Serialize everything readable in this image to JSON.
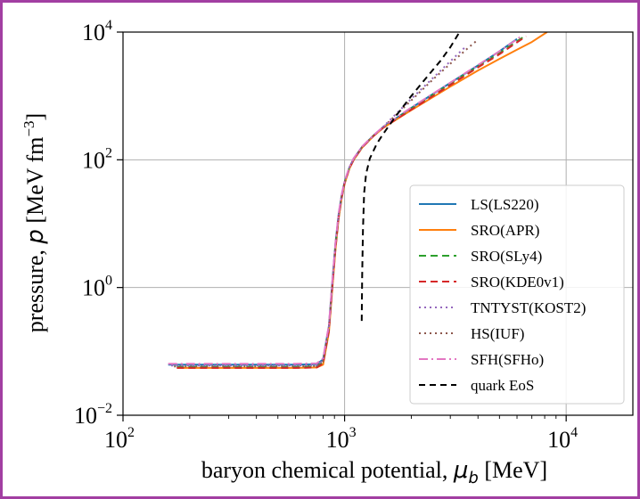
{
  "chart_data": {
    "type": "line",
    "xlabel_prefix": "baryon chemical potential, ",
    "xlabel_symbol": "μ",
    "xlabel_sub": "b",
    "xlabel_suffix": " [MeV]",
    "ylabel_prefix": "pressure, ",
    "ylabel_symbol": "p",
    "ylabel_unit": " [MeV fm",
    "ylabel_exp": "−3",
    "ylabel_close": "]",
    "xscale": "log",
    "yscale": "log",
    "xlim": [
      100,
      20000
    ],
    "ylim": [
      0.01,
      10000
    ],
    "grid": true,
    "legend_position": "lower-right",
    "x_ticks": [
      {
        "value": 100,
        "base": "10",
        "exp": "2"
      },
      {
        "value": 1000,
        "base": "10",
        "exp": "3"
      },
      {
        "value": 10000,
        "base": "10",
        "exp": "4"
      }
    ],
    "y_ticks": [
      {
        "value": 0.01,
        "base": "10",
        "exp": "−2"
      },
      {
        "value": 1,
        "base": "10",
        "exp": "0"
      },
      {
        "value": 100,
        "base": "10",
        "exp": "2"
      },
      {
        "value": 10000,
        "base": "10",
        "exp": "4"
      }
    ],
    "series": [
      {
        "name": "LS(LS220)",
        "color": "#1f77b4",
        "dash": "solid",
        "x": [
          160,
          400,
          600,
          750,
          800,
          850,
          880,
          910,
          940,
          970,
          1000,
          1050,
          1100,
          1200,
          1350,
          1500,
          2000,
          3000,
          4000,
          5000,
          6000
        ],
        "y": [
          0.062,
          0.062,
          0.062,
          0.063,
          0.075,
          0.25,
          1.2,
          5,
          14,
          28,
          45,
          75,
          105,
          160,
          240,
          330,
          650,
          1600,
          3000,
          5000,
          7800
        ]
      },
      {
        "name": "SRO(APR)",
        "color": "#ff7f0e",
        "dash": "solid",
        "x": [
          175,
          400,
          600,
          750,
          800,
          850,
          880,
          910,
          940,
          970,
          1000,
          1050,
          1100,
          1200,
          1350,
          1500,
          2000,
          3000,
          4000,
          5000,
          6000,
          7000,
          8200
        ],
        "y": [
          0.055,
          0.055,
          0.055,
          0.056,
          0.062,
          0.2,
          0.95,
          4,
          12,
          25,
          42,
          72,
          100,
          155,
          235,
          320,
          600,
          1400,
          2500,
          3800,
          5300,
          7000,
          10000
        ]
      },
      {
        "name": "SRO(SLy4)",
        "color": "#2ca02c",
        "dash": "8,5",
        "x": [
          175,
          400,
          600,
          750,
          800,
          850,
          880,
          910,
          940,
          970,
          1000,
          1050,
          1100,
          1200,
          1350,
          1500,
          2000,
          3000,
          4000,
          5000,
          6000,
          6500
        ],
        "y": [
          0.057,
          0.057,
          0.057,
          0.058,
          0.068,
          0.22,
          1.05,
          4.5,
          13,
          26,
          44,
          74,
          102,
          158,
          238,
          325,
          630,
          1550,
          2900,
          4700,
          7200,
          8600
        ]
      },
      {
        "name": "SRO(KDE0v1)",
        "color": "#d62728",
        "dash": "8,5",
        "x": [
          175,
          400,
          600,
          750,
          800,
          850,
          880,
          910,
          940,
          970,
          1000,
          1050,
          1100,
          1200,
          1350,
          1500,
          2000,
          3000,
          4000,
          5000,
          6000,
          6600
        ],
        "y": [
          0.055,
          0.055,
          0.055,
          0.056,
          0.065,
          0.21,
          1.0,
          4.2,
          12.5,
          25.5,
          43,
          73,
          101,
          157,
          236,
          322,
          610,
          1480,
          2800,
          4500,
          6900,
          8600
        ]
      },
      {
        "name": "TNTYST(KOST2)",
        "color": "#9467bd",
        "dash": "2,4",
        "x": [
          165,
          400,
          600,
          750,
          800,
          850,
          880,
          910,
          940,
          970,
          1000,
          1050,
          1100,
          1200,
          1350,
          1500,
          2000,
          2500,
          3000,
          3500
        ],
        "y": [
          0.06,
          0.06,
          0.06,
          0.061,
          0.072,
          0.24,
          1.15,
          4.8,
          13.5,
          27,
          45,
          76,
          104,
          160,
          240,
          335,
          900,
          1900,
          3500,
          5800
        ]
      },
      {
        "name": "HS(IUF)",
        "color": "#8c564b",
        "dash": "2,4",
        "x": [
          170,
          400,
          600,
          750,
          800,
          850,
          880,
          910,
          940,
          970,
          1000,
          1050,
          1100,
          1200,
          1350,
          1500,
          2000,
          2500,
          3000,
          3600,
          4000
        ],
        "y": [
          0.058,
          0.058,
          0.058,
          0.059,
          0.07,
          0.23,
          1.1,
          4.6,
          13,
          26.5,
          44,
          75,
          103,
          159,
          239,
          330,
          850,
          1800,
          3200,
          5600,
          7600
        ]
      },
      {
        "name": "SFH(SFHo)",
        "color": "#e377c2",
        "dash": "10,4,2,4",
        "x": [
          160,
          400,
          600,
          750,
          800,
          850,
          880,
          910,
          940,
          970,
          1000,
          1050,
          1100,
          1200,
          1350,
          1500,
          2000,
          3000,
          4000,
          5000,
          6000,
          6200
        ],
        "y": [
          0.064,
          0.064,
          0.064,
          0.065,
          0.078,
          0.26,
          1.25,
          5.1,
          14.5,
          28.5,
          46,
          77,
          106,
          162,
          242,
          333,
          660,
          1620,
          3050,
          5000,
          7700,
          8400
        ]
      },
      {
        "name": "quark EoS",
        "color": "#000000",
        "dash": "7,5",
        "x": [
          1195,
          1200,
          1210,
          1225,
          1250,
          1300,
          1400,
          1500,
          1700,
          2000,
          2300,
          2700,
          3000,
          3300
        ],
        "y": [
          0.3,
          1.5,
          8,
          30,
          60,
          105,
          180,
          260,
          480,
          1000,
          1800,
          3500,
          5800,
          10000
        ]
      }
    ]
  }
}
